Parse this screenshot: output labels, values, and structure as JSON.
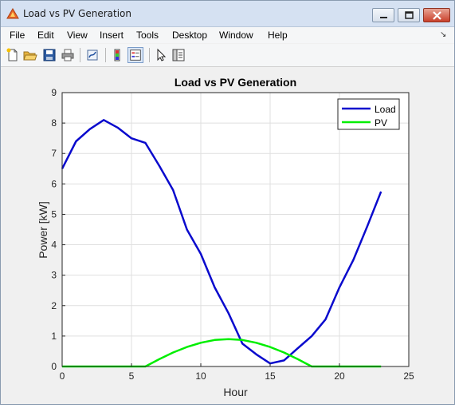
{
  "window": {
    "title": "Load vs PV Generation",
    "controls": [
      "minimize",
      "maximize",
      "close"
    ]
  },
  "menubar": {
    "items": [
      "File",
      "Edit",
      "View",
      "Insert",
      "Tools",
      "Desktop",
      "Window",
      "Help"
    ],
    "overflow_icon": "dock-arrow-icon"
  },
  "toolbar": {
    "buttons": [
      {
        "icon": "new-figure-icon"
      },
      {
        "icon": "open-folder-icon"
      },
      {
        "icon": "save-icon"
      },
      {
        "icon": "print-icon"
      },
      {
        "icon": "link-plot-icon"
      },
      {
        "icon": "colorbar-icon"
      },
      {
        "icon": "legend-icon",
        "active": true
      },
      {
        "icon": "pointer-icon"
      },
      {
        "icon": "property-inspector-icon"
      }
    ]
  },
  "chart_data": {
    "type": "line",
    "title": "Load vs PV Generation",
    "xlabel": "Hour",
    "ylabel": "Power [kW]",
    "xlim": [
      0,
      25
    ],
    "ylim": [
      0,
      9
    ],
    "xticks": [
      "0",
      "5",
      "10",
      "15",
      "20",
      "25"
    ],
    "yticks": [
      "0",
      "1",
      "2",
      "3",
      "4",
      "5",
      "6",
      "7",
      "8",
      "9"
    ],
    "grid": true,
    "legend_position": "top-right",
    "x": [
      0,
      1,
      2,
      3,
      4,
      5,
      6,
      7,
      8,
      9,
      10,
      11,
      12,
      13,
      14,
      15,
      16,
      17,
      18,
      19,
      20,
      21,
      22,
      23
    ],
    "series": [
      {
        "name": "Load",
        "color": "#0a0acd",
        "values": [
          6.5,
          7.4,
          7.8,
          8.1,
          7.85,
          7.5,
          7.35,
          6.6,
          5.8,
          4.5,
          3.7,
          2.6,
          1.75,
          0.75,
          0.4,
          0.1,
          0.2,
          0.6,
          1.0,
          1.55,
          2.6,
          3.5,
          4.6,
          5.75
        ]
      },
      {
        "name": "PV",
        "color": "#00ee00",
        "values": [
          0,
          0,
          0,
          0,
          0,
          0,
          0,
          0.24,
          0.46,
          0.64,
          0.78,
          0.87,
          0.9,
          0.87,
          0.78,
          0.64,
          0.46,
          0.24,
          0,
          0,
          0,
          0,
          0,
          0
        ]
      }
    ]
  }
}
